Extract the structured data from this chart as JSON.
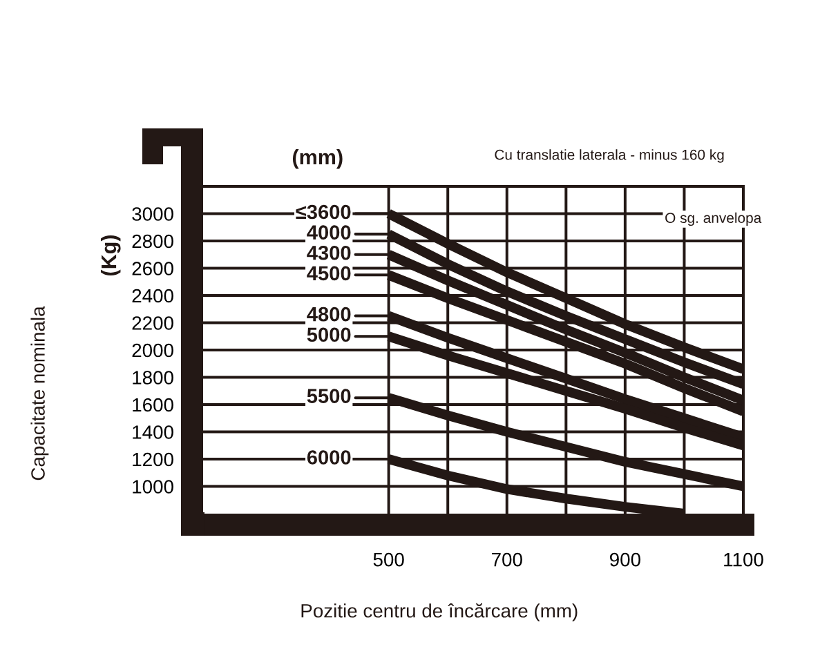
{
  "chart_data": {
    "type": "line",
    "xlabel": "Pozitie centru de încărcare (mm)",
    "ylabel": "Capacitate nominala",
    "legend_title": "(mm)",
    "annotations": [
      "(Kg)",
      "Cu translatie laterala - minus 160 kg",
      "O sg. anvelopa"
    ],
    "x": [
      500,
      600,
      700,
      800,
      900,
      1000,
      1100
    ],
    "series": [
      {
        "name": "≤3600",
        "color": "#231815",
        "values": [
          3000,
          2780,
          2570,
          2380,
          2190,
          2020,
          1860
        ]
      },
      {
        "name": "4000",
        "color": "#231815",
        "values": [
          2850,
          2630,
          2430,
          2250,
          2080,
          1910,
          1750
        ]
      },
      {
        "name": "4300",
        "color": "#231815",
        "values": [
          2700,
          2510,
          2330,
          2150,
          1980,
          1800,
          1630
        ]
      },
      {
        "name": "4500",
        "color": "#231815",
        "values": [
          2550,
          2380,
          2220,
          2060,
          1900,
          1720,
          1550
        ]
      },
      {
        "name": "4800",
        "color": "#231815",
        "values": [
          2250,
          2090,
          1940,
          1790,
          1640,
          1500,
          1360
        ]
      },
      {
        "name": "5000",
        "color": "#231815",
        "values": [
          2100,
          1960,
          1830,
          1700,
          1570,
          1430,
          1300
        ]
      },
      {
        "name": "5500",
        "color": "#231815",
        "values": [
          1650,
          1520,
          1400,
          1290,
          1180,
          1090,
          1000
        ]
      },
      {
        "name": "6000",
        "color": "#231815",
        "x": [
          500,
          600,
          700,
          800,
          900,
          1000
        ],
        "values": [
          1200,
          1080,
          980,
          910,
          850,
          800
        ]
      }
    ],
    "xlim": [
      186,
      1100
    ],
    "ylim": [
      800,
      3200
    ],
    "xticks": [
      500,
      {
        "value": 600,
        "label": null
      },
      700,
      {
        "value": 800,
        "label": null
      },
      900,
      {
        "value": 1000,
        "label": null
      },
      1100
    ],
    "yticks": [
      1000,
      1200,
      1400,
      1600,
      1800,
      2000,
      2200,
      2400,
      2600,
      2800,
      3000
    ],
    "grid": true,
    "legend": "left",
    "marker": "none",
    "line_style": "solid"
  }
}
